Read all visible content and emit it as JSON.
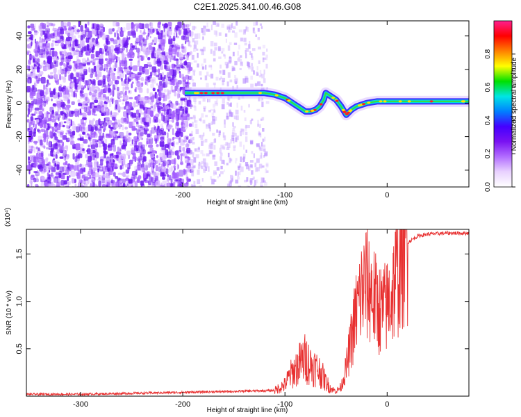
{
  "title": "C2E1.2025.341.00.46.G08",
  "chart_data": [
    {
      "type": "heatmap",
      "name": "spectrogram",
      "xlabel": "Height of straight line (km)",
      "ylabel": "Frequency (Hz)",
      "xlim": [
        -353,
        80
      ],
      "ylim": [
        -50,
        49
      ],
      "x_ticks": [
        -300,
        -200,
        -100,
        0
      ],
      "y_ticks": [
        -40,
        -20,
        0,
        20,
        40
      ],
      "colorbar": {
        "label": "Normalized spectral amplitude",
        "range": [
          0,
          1
        ],
        "ticks": [
          "0.0",
          "0.2",
          "0.4",
          "0.6",
          "0.8"
        ],
        "colors": [
          "#ffffff",
          "#e9d2ff",
          "#b26dff",
          "#7a12f2",
          "#4400ff",
          "#0080ff",
          "#00e5e5",
          "#00e000",
          "#ffff00",
          "#ff8000",
          "#ff0000",
          "#ff1f8f"
        ]
      },
      "signal_trace": {
        "x": [
          -198,
          -180,
          -160,
          -140,
          -120,
          -110,
          -100,
          -95,
          -90,
          -85,
          -80,
          -75,
          -70,
          -66,
          -62,
          -60,
          -55,
          -50,
          -45,
          -40,
          -35,
          -30,
          -25,
          -20,
          -10,
          0,
          20,
          40,
          60,
          80
        ],
        "freq": [
          6,
          6,
          6,
          6,
          6,
          5,
          3,
          1,
          -1,
          -3,
          -5,
          -5,
          -4,
          -2,
          2,
          6,
          4,
          2,
          -2,
          -7,
          -4,
          -2,
          -1,
          0,
          1,
          1,
          1,
          1,
          1,
          1
        ]
      }
    },
    {
      "type": "line",
      "name": "snr",
      "xlabel": "Height of straight line (km)",
      "ylabel": "SNR (10 * v/v)",
      "y_multiplier": "(x10⁴)",
      "xlim": [
        -353,
        80
      ],
      "ylim": [
        0,
        1.76
      ],
      "x_ticks": [
        -300,
        -200,
        -100,
        0
      ],
      "y_ticks": [
        "0.5",
        "1.0",
        "1.5"
      ],
      "series": [
        {
          "name": "SNR",
          "color": "#e83030",
          "x": [
            -353,
            -300,
            -250,
            -200,
            -150,
            -110,
            -100,
            -95,
            -90,
            -85,
            -80,
            -75,
            -70,
            -65,
            -60,
            -55,
            -50,
            -45,
            -40,
            -35,
            -30,
            -25,
            -20,
            -15,
            -10,
            -5,
            0,
            5,
            10,
            15,
            20,
            30,
            40,
            60,
            80
          ],
          "y": [
            0.02,
            0.02,
            0.03,
            0.04,
            0.05,
            0.06,
            0.12,
            0.22,
            0.28,
            0.35,
            0.4,
            0.33,
            0.3,
            0.25,
            0.15,
            0.08,
            0.05,
            0.1,
            0.3,
            0.6,
            0.9,
            1.1,
            1.2,
            1.1,
            0.95,
            0.9,
            0.95,
            1.1,
            1.3,
            1.5,
            1.62,
            1.69,
            1.71,
            1.72,
            1.72
          ]
        }
      ]
    }
  ]
}
